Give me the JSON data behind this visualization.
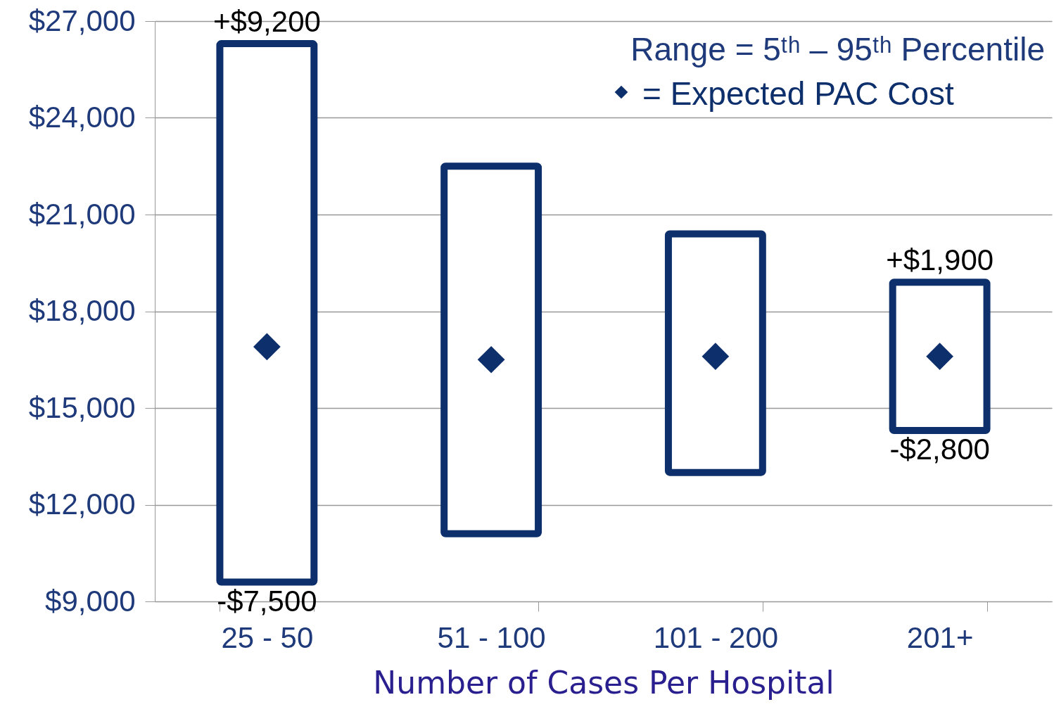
{
  "chart_data": {
    "type": "bar",
    "categories": [
      "25 - 50",
      "51 - 100",
      "101 - 200",
      "201+"
    ],
    "xlabel": "Number of Cases Per Hospital",
    "ylim": [
      9000,
      27000
    ],
    "yticks": [
      {
        "value": 9000,
        "label": "$9,000"
      },
      {
        "value": 12000,
        "label": "$12,000"
      },
      {
        "value": 15000,
        "label": "$15,000"
      },
      {
        "value": 18000,
        "label": "$18,000"
      },
      {
        "value": 21000,
        "label": "$21,000"
      },
      {
        "value": 24000,
        "label": "$24,000"
      },
      {
        "value": 27000,
        "label": "$27,000"
      }
    ],
    "grid": "y",
    "legend": "top right",
    "marker": "diamond",
    "series": [
      {
        "color": "#0d2f6b",
        "base": [
          9600,
          11100,
          13000,
          14300
        ],
        "values": [
          16700,
          11400,
          7400,
          4600
        ]
      },
      {
        "type": "scatter",
        "name": "= Expected PAC Cost",
        "color": "#0d2f6b",
        "values": [
          16900,
          16500,
          16600,
          16600
        ]
      }
    ],
    "annotations": [
      "Range = 5ᵗʰ – 95ᵗʰ Percentile",
      {
        "text": "+$9,200",
        "x": "25 - 50",
        "y": 26300
      },
      {
        "text": "-$7,500",
        "x": "25 - 50",
        "y": 9600
      },
      {
        "text": "+$1,900",
        "x": "201+",
        "y": 18900
      },
      {
        "text": "-$2,800",
        "x": "201+",
        "y": 14300
      }
    ]
  }
}
